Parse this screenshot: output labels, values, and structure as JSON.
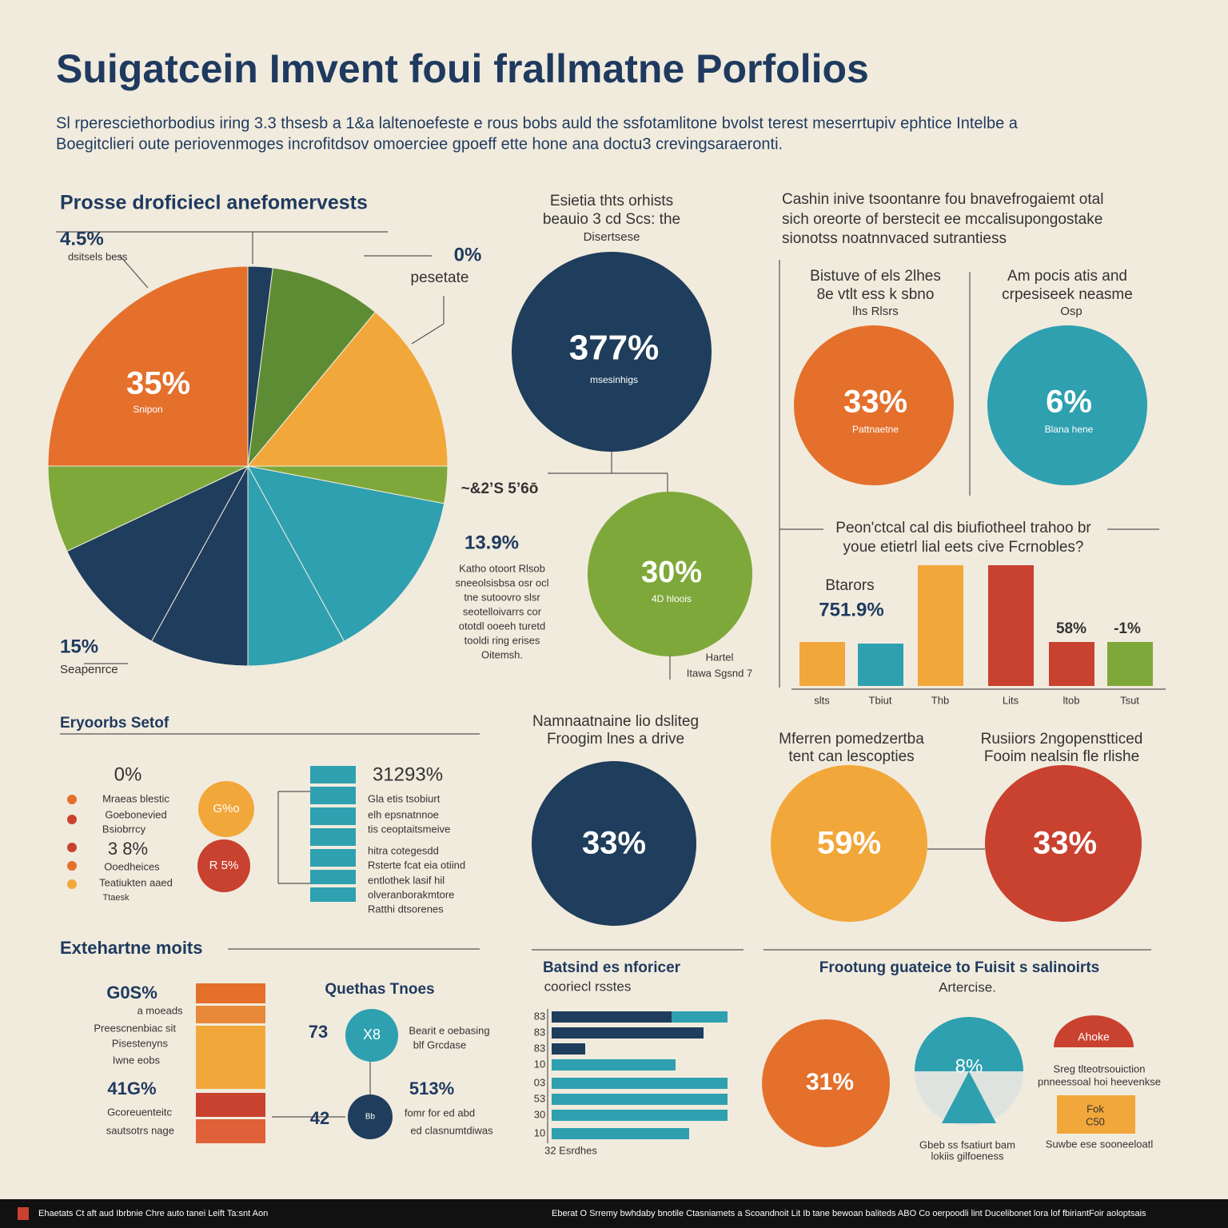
{
  "header": {
    "title": "Suigatcein Imvent foui frallmatne Porfolios",
    "subtitle": [
      "Sl rperesciethorbodius iring 3.3 thsesb a 1&a laltenoefeste e rous bobs auld the ssfotamlitone bvolst terest meserrtupiv ephtice Intelbe a",
      "Boegitclieri oute periovenmoges incrofitdsov omoerciee gpoeff ette hone ana doctu3 crevingsaraeronti."
    ]
  },
  "pie": {
    "title": "Prosse droficiecl anefomervests",
    "values": [
      2,
      9,
      14,
      3,
      14,
      8,
      8,
      10,
      7,
      25
    ],
    "colors": [
      "#1f3d5c",
      "#5e8c35",
      "#f2a73a",
      "#7fa83a",
      "#2ea0b0",
      "#2ea0b0",
      "#1f3d5c",
      "#1f3d5c",
      "#7fa83a",
      "#e4702c"
    ],
    "labels": [
      "4.5%",
      "dsitsels bess",
      "0%",
      "pesetate",
      "35%",
      "Snipon",
      "~&2ʼS 5ʼ6ō",
      "13.9%",
      "15%",
      "Seapenrce"
    ],
    "notes": [
      "Katho otoort Rlsob",
      "sneeolsisbsa osr ocl",
      "tne sutoovro slsr",
      "seotelloivarrs cor",
      "ototdl ooeeh turetd",
      "tooldi ring erises",
      "Oitemsh."
    ]
  },
  "middle": {
    "heading": [
      "Esietia thts orhists",
      "beauio 3 cd Scs: the",
      "Disertsese"
    ],
    "circle_1": [
      "377%",
      "msesinhigs"
    ],
    "circle_2": [
      "30%",
      "4D hloois"
    ],
    "note": [
      "Hartel",
      "Itawa Sgsnd 7"
    ]
  },
  "right": {
    "heading": [
      "Cashin inive tsoontanre fou bnavefrogaiemt otal",
      "sich oreorte of berstecit ee mccalisupongostake",
      "sionotss noatnnvaced sutrantiess"
    ],
    "left_col": [
      "Bistuve of els 2lhes",
      "8e vtlt ess k sbno",
      "lhs Rlsrs"
    ],
    "left_circle": [
      "33%",
      "Pattnaetne"
    ],
    "right_col": [
      "Am pocis atis and",
      "crpesiseek neasme",
      "Osp"
    ],
    "right_circle": [
      "6%",
      "Blana hene"
    ]
  },
  "bars": {
    "heading": [
      "Peon'ctcal cal dis biufiotheel trahoo br",
      "youe etietrl lial eets cive Fcrnobles?"
    ],
    "values": [
      55,
      53,
      151,
      151,
      55,
      55
    ],
    "colors": [
      "#f2a73a",
      "#2ea0b0",
      "#f2a73a",
      "#c9412f",
      "#c9412f",
      "#7fa83a"
    ],
    "ylim": [
      0,
      160
    ],
    "categories": [
      "slts",
      "Tbiut",
      "Thb",
      "Lits",
      "ltob",
      "Tsut"
    ],
    "labels": [
      "Btarors",
      "751.9%",
      "58%",
      "-1%"
    ]
  },
  "list": {
    "title": "Eryoorbs Setof",
    "items": [
      "0%",
      "Mraeas blestic",
      "Goebonevied",
      "Bsiobrrcy",
      "3 8%",
      "Ooedheices",
      "Teatiukten aaed",
      "Ttaesk"
    ],
    "circles": [
      "G%o",
      "R 5%"
    ],
    "figure": "31293%",
    "notes": [
      "Gla etis tsobiurt",
      "elh epsnatnnoe",
      "tis ceoptaitsmeive",
      "hitra cotegesdd",
      "Rsterte fcat eia otiind",
      "entlothek lasif hil",
      "olveranborakmtore",
      "Ratthi dtsorenes"
    ]
  },
  "center": {
    "heading": [
      "Namnaatnaine lio dsliteg",
      "Froogim lnes a drive"
    ],
    "value": "33%"
  },
  "pair": {
    "left_heading": [
      "Mferren pomedzertba",
      "tent can lescopties"
    ],
    "right_heading": [
      "Rusiiors 2ngopenstticed",
      "Fooim nealsin fle rlishe"
    ],
    "left_value": "59%",
    "right_value": "33%"
  },
  "bottom_left": {
    "title": "Extehartne moits",
    "texts": [
      "G0S%",
      "a moeads",
      "Preescnenbiac sit",
      "Pisestenyns",
      "Iwne eobs",
      "41G%",
      "Gcoreuenteitc",
      "sautsotrs nage"
    ],
    "sub_title": "Quethas Tnoes",
    "sub_texts": [
      "73",
      "X8",
      "Bearit e oebasing",
      "blf Grcdase",
      "513%",
      "42",
      "Bb",
      "fomr for ed abd",
      "ed clasnumtdiwas"
    ]
  },
  "hbars": {
    "title": "Batsind es nforicer",
    "subtitle": "cooriecl rsstes",
    "labels": [
      "83",
      "83",
      "83",
      "10",
      "03",
      "53",
      "30",
      "10"
    ],
    "xlim": [
      0,
      220
    ],
    "note": "32 Esrdhes",
    "series": [
      {
        "color": "#1f3d5c",
        "values": [
          150,
          190,
          42,
          null,
          null,
          null,
          null,
          null
        ]
      },
      {
        "color": "#2ea0b0",
        "values": [
          70,
          null,
          null,
          155,
          220,
          220,
          220,
          172
        ]
      }
    ]
  },
  "bottom_right": {
    "title": "Frootung guateice to Fuisit s salinoirts",
    "subtitle": "Artercise.",
    "texts": [
      "31%",
      "8%",
      "Gbeb ss fsatiurt bam",
      "lokiis gilfoeness",
      "Ahoke",
      "Sreg tlteotrsouiction",
      "pnneessoal hoi heevenkse",
      "Fok",
      "C50",
      "Suwbe ese sooneeloatl"
    ]
  },
  "footer": [
    "Ehaetats Ct aft aud Ibrbnie Chre auto tanei Leift Ta:snt Aon",
    "Eberat O Srremy bwhdaby bnotile Ctasniamets a Scoandnoit Lit Ib tane bewoan baliteds ABO Co oerpoodli lint Ducelibonet lora lof fbiriantFoir aoloptsais"
  ]
}
